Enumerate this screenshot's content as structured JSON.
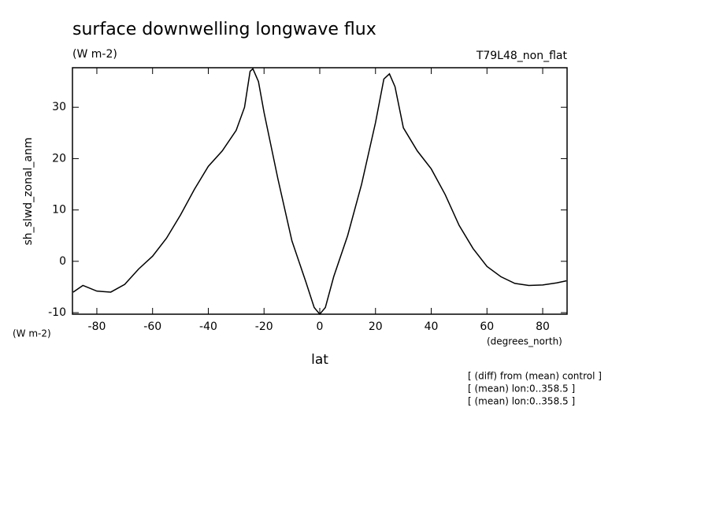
{
  "chart_data": {
    "type": "line",
    "title": "surface downwelling longwave flux",
    "subtitle": "(W m-2)",
    "run_label": "T79L48_non_flat",
    "ylabel": "sh_slwd_zonal_anm",
    "y_units": "(W m-2)",
    "x_units": "(degrees_north)",
    "xlabel": "lat",
    "annotations": [
      "[ (diff) from (mean) control ]",
      "[ (mean) lon:0..358.5 ]",
      "[ (mean) lon:0..358.5 ]"
    ],
    "x": [
      -88.5,
      -85,
      -80,
      -75,
      -70,
      -65,
      -60,
      -55,
      -50,
      -45,
      -40,
      -35,
      -30,
      -27,
      -25,
      -24,
      -22,
      -20,
      -15,
      -10,
      -5,
      -2,
      0,
      2,
      5,
      10,
      15,
      20,
      23,
      25,
      27,
      30,
      35,
      40,
      45,
      50,
      55,
      60,
      65,
      70,
      75,
      80,
      85,
      88.5
    ],
    "series": [
      {
        "color": "#000000",
        "values": [
          -6,
          -4.7,
          -5.8,
          -6,
          -4.5,
          -1.5,
          1,
          4.5,
          9,
          14,
          18.5,
          21.5,
          25.5,
          30,
          37,
          37.5,
          35,
          29,
          16,
          4,
          -4,
          -9,
          -10.3,
          -9,
          -3,
          5,
          15,
          27,
          35.5,
          36.5,
          34,
          26,
          21.5,
          18,
          13,
          7,
          2.5,
          -1,
          -3,
          -4.3,
          -4.7,
          -4.6,
          -4.2,
          -3.8
        ]
      }
    ],
    "xlim": [
      -88.75,
      88.75
    ],
    "ylim": [
      -10.3,
      37.7
    ],
    "xticks": [
      -80,
      -60,
      -40,
      -20,
      0,
      20,
      40,
      60,
      80
    ],
    "yticks": [
      -10,
      0,
      10,
      20,
      30
    ]
  }
}
